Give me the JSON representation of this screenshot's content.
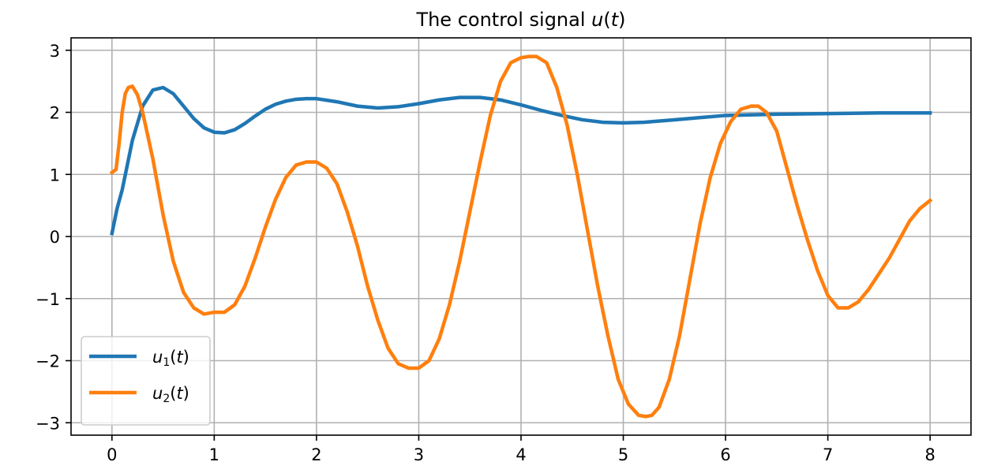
{
  "chart_data": {
    "type": "line",
    "title": {
      "prefix": "The control signal ",
      "var": "u",
      "open": "(",
      "arg": "t",
      "close": ")"
    },
    "xlim": [
      -0.4,
      8.4
    ],
    "ylim": [
      -3.2,
      3.2
    ],
    "grid": true,
    "legend_position": "lower-left",
    "x_ticks": [
      0,
      1,
      2,
      3,
      4,
      5,
      6,
      7,
      8
    ],
    "y_ticks": [
      -3,
      -2,
      -1,
      0,
      1,
      2,
      3
    ],
    "x_tick_labels": [
      "0",
      "1",
      "2",
      "3",
      "4",
      "5",
      "6",
      "7",
      "8"
    ],
    "y_tick_labels": [
      "−3",
      "−2",
      "−1",
      "0",
      "1",
      "2",
      "3"
    ],
    "series": [
      {
        "name": {
          "var": "u",
          "sub": "1",
          "open": "(",
          "arg": "t",
          "close": ")"
        },
        "color": "#1f77b4",
        "x": [
          0,
          0.05,
          0.1,
          0.2,
          0.3,
          0.4,
          0.5,
          0.6,
          0.7,
          0.8,
          0.9,
          1.0,
          1.1,
          1.2,
          1.3,
          1.4,
          1.5,
          1.6,
          1.7,
          1.8,
          1.9,
          2.0,
          2.2,
          2.4,
          2.6,
          2.8,
          3.0,
          3.2,
          3.4,
          3.6,
          3.8,
          4.0,
          4.2,
          4.4,
          4.6,
          4.8,
          5.0,
          5.2,
          5.5,
          6.0,
          6.5,
          7.0,
          7.5,
          8.0
        ],
        "y": [
          0.05,
          0.45,
          0.75,
          1.55,
          2.1,
          2.36,
          2.4,
          2.3,
          2.1,
          1.9,
          1.75,
          1.68,
          1.67,
          1.72,
          1.82,
          1.94,
          2.05,
          2.13,
          2.18,
          2.21,
          2.22,
          2.22,
          2.17,
          2.1,
          2.07,
          2.09,
          2.14,
          2.2,
          2.24,
          2.24,
          2.2,
          2.12,
          2.03,
          1.95,
          1.88,
          1.84,
          1.83,
          1.84,
          1.88,
          1.95,
          1.97,
          1.98,
          1.99,
          1.99
        ]
      },
      {
        "name": {
          "var": "u",
          "sub": "2",
          "open": "(",
          "arg": "t",
          "close": ")"
        },
        "color": "#ff7f0e",
        "x": [
          0,
          0.04,
          0.07,
          0.1,
          0.13,
          0.16,
          0.2,
          0.25,
          0.3,
          0.4,
          0.5,
          0.6,
          0.7,
          0.8,
          0.9,
          1.0,
          1.1,
          1.2,
          1.3,
          1.4,
          1.5,
          1.6,
          1.7,
          1.8,
          1.9,
          2.0,
          2.1,
          2.2,
          2.3,
          2.4,
          2.5,
          2.6,
          2.7,
          2.8,
          2.9,
          3.0,
          3.1,
          3.2,
          3.3,
          3.4,
          3.5,
          3.6,
          3.7,
          3.8,
          3.9,
          4.0,
          4.08,
          4.15,
          4.25,
          4.35,
          4.45,
          4.55,
          4.65,
          4.75,
          4.85,
          4.95,
          5.05,
          5.15,
          5.22,
          5.28,
          5.35,
          5.45,
          5.55,
          5.65,
          5.75,
          5.85,
          5.95,
          6.05,
          6.15,
          6.25,
          6.32,
          6.4,
          6.5,
          6.6,
          6.7,
          6.8,
          6.9,
          7.0,
          7.1,
          7.2,
          7.3,
          7.4,
          7.5,
          7.6,
          7.7,
          7.8,
          7.9,
          8.0
        ],
        "y": [
          1.03,
          1.08,
          1.5,
          2.0,
          2.3,
          2.4,
          2.42,
          2.28,
          2.0,
          1.25,
          0.35,
          -0.4,
          -0.9,
          -1.15,
          -1.25,
          -1.22,
          -1.22,
          -1.1,
          -0.8,
          -0.35,
          0.15,
          0.6,
          0.95,
          1.15,
          1.2,
          1.2,
          1.1,
          0.85,
          0.4,
          -0.15,
          -0.8,
          -1.35,
          -1.8,
          -2.05,
          -2.12,
          -2.12,
          -2.0,
          -1.65,
          -1.1,
          -0.4,
          0.4,
          1.2,
          1.95,
          2.5,
          2.8,
          2.88,
          2.9,
          2.9,
          2.8,
          2.4,
          1.8,
          1.0,
          0.1,
          -0.8,
          -1.6,
          -2.3,
          -2.7,
          -2.88,
          -2.9,
          -2.88,
          -2.75,
          -2.3,
          -1.6,
          -0.7,
          0.2,
          0.95,
          1.5,
          1.85,
          2.05,
          2.1,
          2.1,
          2.0,
          1.7,
          1.1,
          0.5,
          -0.05,
          -0.55,
          -0.95,
          -1.15,
          -1.15,
          -1.05,
          -0.85,
          -0.6,
          -0.35,
          -0.05,
          0.25,
          0.45,
          0.58
        ]
      }
    ]
  }
}
